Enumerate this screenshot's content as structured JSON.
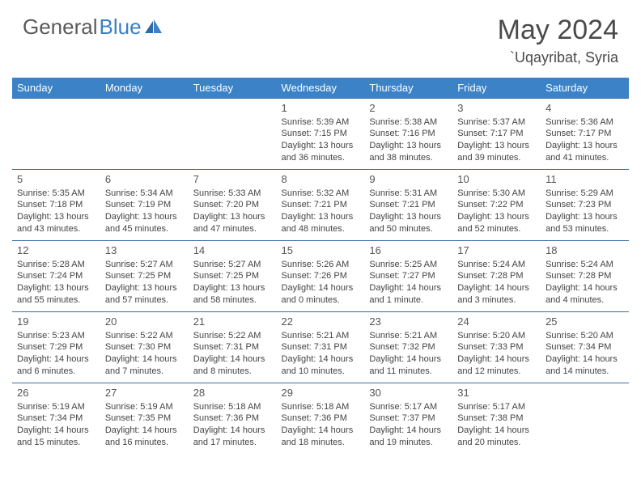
{
  "logo": {
    "text_gray": "General",
    "text_blue": "Blue"
  },
  "header": {
    "month": "May 2024",
    "location": "`Uqayribat, Syria"
  },
  "styling": {
    "header_bg": "#3b82c7",
    "header_text": "#ffffff",
    "border_color": "#3b6fa0",
    "body_text": "#444444",
    "title_color": "#4a4a4a",
    "logo_gray": "#5a5a5a",
    "logo_blue": "#3b7fc4",
    "page_bg": "#ffffff",
    "font_family": "Arial",
    "month_fontsize": 34,
    "location_fontsize": 18,
    "dayheader_fontsize": 13,
    "cell_fontsize": 11
  },
  "day_headers": [
    "Sunday",
    "Monday",
    "Tuesday",
    "Wednesday",
    "Thursday",
    "Friday",
    "Saturday"
  ],
  "weeks": [
    [
      null,
      null,
      null,
      {
        "n": "1",
        "sr": "Sunrise: 5:39 AM",
        "ss": "Sunset: 7:15 PM",
        "dl": "Daylight: 13 hours and 36 minutes."
      },
      {
        "n": "2",
        "sr": "Sunrise: 5:38 AM",
        "ss": "Sunset: 7:16 PM",
        "dl": "Daylight: 13 hours and 38 minutes."
      },
      {
        "n": "3",
        "sr": "Sunrise: 5:37 AM",
        "ss": "Sunset: 7:17 PM",
        "dl": "Daylight: 13 hours and 39 minutes."
      },
      {
        "n": "4",
        "sr": "Sunrise: 5:36 AM",
        "ss": "Sunset: 7:17 PM",
        "dl": "Daylight: 13 hours and 41 minutes."
      }
    ],
    [
      {
        "n": "5",
        "sr": "Sunrise: 5:35 AM",
        "ss": "Sunset: 7:18 PM",
        "dl": "Daylight: 13 hours and 43 minutes."
      },
      {
        "n": "6",
        "sr": "Sunrise: 5:34 AM",
        "ss": "Sunset: 7:19 PM",
        "dl": "Daylight: 13 hours and 45 minutes."
      },
      {
        "n": "7",
        "sr": "Sunrise: 5:33 AM",
        "ss": "Sunset: 7:20 PM",
        "dl": "Daylight: 13 hours and 47 minutes."
      },
      {
        "n": "8",
        "sr": "Sunrise: 5:32 AM",
        "ss": "Sunset: 7:21 PM",
        "dl": "Daylight: 13 hours and 48 minutes."
      },
      {
        "n": "9",
        "sr": "Sunrise: 5:31 AM",
        "ss": "Sunset: 7:21 PM",
        "dl": "Daylight: 13 hours and 50 minutes."
      },
      {
        "n": "10",
        "sr": "Sunrise: 5:30 AM",
        "ss": "Sunset: 7:22 PM",
        "dl": "Daylight: 13 hours and 52 minutes."
      },
      {
        "n": "11",
        "sr": "Sunrise: 5:29 AM",
        "ss": "Sunset: 7:23 PM",
        "dl": "Daylight: 13 hours and 53 minutes."
      }
    ],
    [
      {
        "n": "12",
        "sr": "Sunrise: 5:28 AM",
        "ss": "Sunset: 7:24 PM",
        "dl": "Daylight: 13 hours and 55 minutes."
      },
      {
        "n": "13",
        "sr": "Sunrise: 5:27 AM",
        "ss": "Sunset: 7:25 PM",
        "dl": "Daylight: 13 hours and 57 minutes."
      },
      {
        "n": "14",
        "sr": "Sunrise: 5:27 AM",
        "ss": "Sunset: 7:25 PM",
        "dl": "Daylight: 13 hours and 58 minutes."
      },
      {
        "n": "15",
        "sr": "Sunrise: 5:26 AM",
        "ss": "Sunset: 7:26 PM",
        "dl": "Daylight: 14 hours and 0 minutes."
      },
      {
        "n": "16",
        "sr": "Sunrise: 5:25 AM",
        "ss": "Sunset: 7:27 PM",
        "dl": "Daylight: 14 hours and 1 minute."
      },
      {
        "n": "17",
        "sr": "Sunrise: 5:24 AM",
        "ss": "Sunset: 7:28 PM",
        "dl": "Daylight: 14 hours and 3 minutes."
      },
      {
        "n": "18",
        "sr": "Sunrise: 5:24 AM",
        "ss": "Sunset: 7:28 PM",
        "dl": "Daylight: 14 hours and 4 minutes."
      }
    ],
    [
      {
        "n": "19",
        "sr": "Sunrise: 5:23 AM",
        "ss": "Sunset: 7:29 PM",
        "dl": "Daylight: 14 hours and 6 minutes."
      },
      {
        "n": "20",
        "sr": "Sunrise: 5:22 AM",
        "ss": "Sunset: 7:30 PM",
        "dl": "Daylight: 14 hours and 7 minutes."
      },
      {
        "n": "21",
        "sr": "Sunrise: 5:22 AM",
        "ss": "Sunset: 7:31 PM",
        "dl": "Daylight: 14 hours and 8 minutes."
      },
      {
        "n": "22",
        "sr": "Sunrise: 5:21 AM",
        "ss": "Sunset: 7:31 PM",
        "dl": "Daylight: 14 hours and 10 minutes."
      },
      {
        "n": "23",
        "sr": "Sunrise: 5:21 AM",
        "ss": "Sunset: 7:32 PM",
        "dl": "Daylight: 14 hours and 11 minutes."
      },
      {
        "n": "24",
        "sr": "Sunrise: 5:20 AM",
        "ss": "Sunset: 7:33 PM",
        "dl": "Daylight: 14 hours and 12 minutes."
      },
      {
        "n": "25",
        "sr": "Sunrise: 5:20 AM",
        "ss": "Sunset: 7:34 PM",
        "dl": "Daylight: 14 hours and 14 minutes."
      }
    ],
    [
      {
        "n": "26",
        "sr": "Sunrise: 5:19 AM",
        "ss": "Sunset: 7:34 PM",
        "dl": "Daylight: 14 hours and 15 minutes."
      },
      {
        "n": "27",
        "sr": "Sunrise: 5:19 AM",
        "ss": "Sunset: 7:35 PM",
        "dl": "Daylight: 14 hours and 16 minutes."
      },
      {
        "n": "28",
        "sr": "Sunrise: 5:18 AM",
        "ss": "Sunset: 7:36 PM",
        "dl": "Daylight: 14 hours and 17 minutes."
      },
      {
        "n": "29",
        "sr": "Sunrise: 5:18 AM",
        "ss": "Sunset: 7:36 PM",
        "dl": "Daylight: 14 hours and 18 minutes."
      },
      {
        "n": "30",
        "sr": "Sunrise: 5:17 AM",
        "ss": "Sunset: 7:37 PM",
        "dl": "Daylight: 14 hours and 19 minutes."
      },
      {
        "n": "31",
        "sr": "Sunrise: 5:17 AM",
        "ss": "Sunset: 7:38 PM",
        "dl": "Daylight: 14 hours and 20 minutes."
      },
      null
    ]
  ]
}
